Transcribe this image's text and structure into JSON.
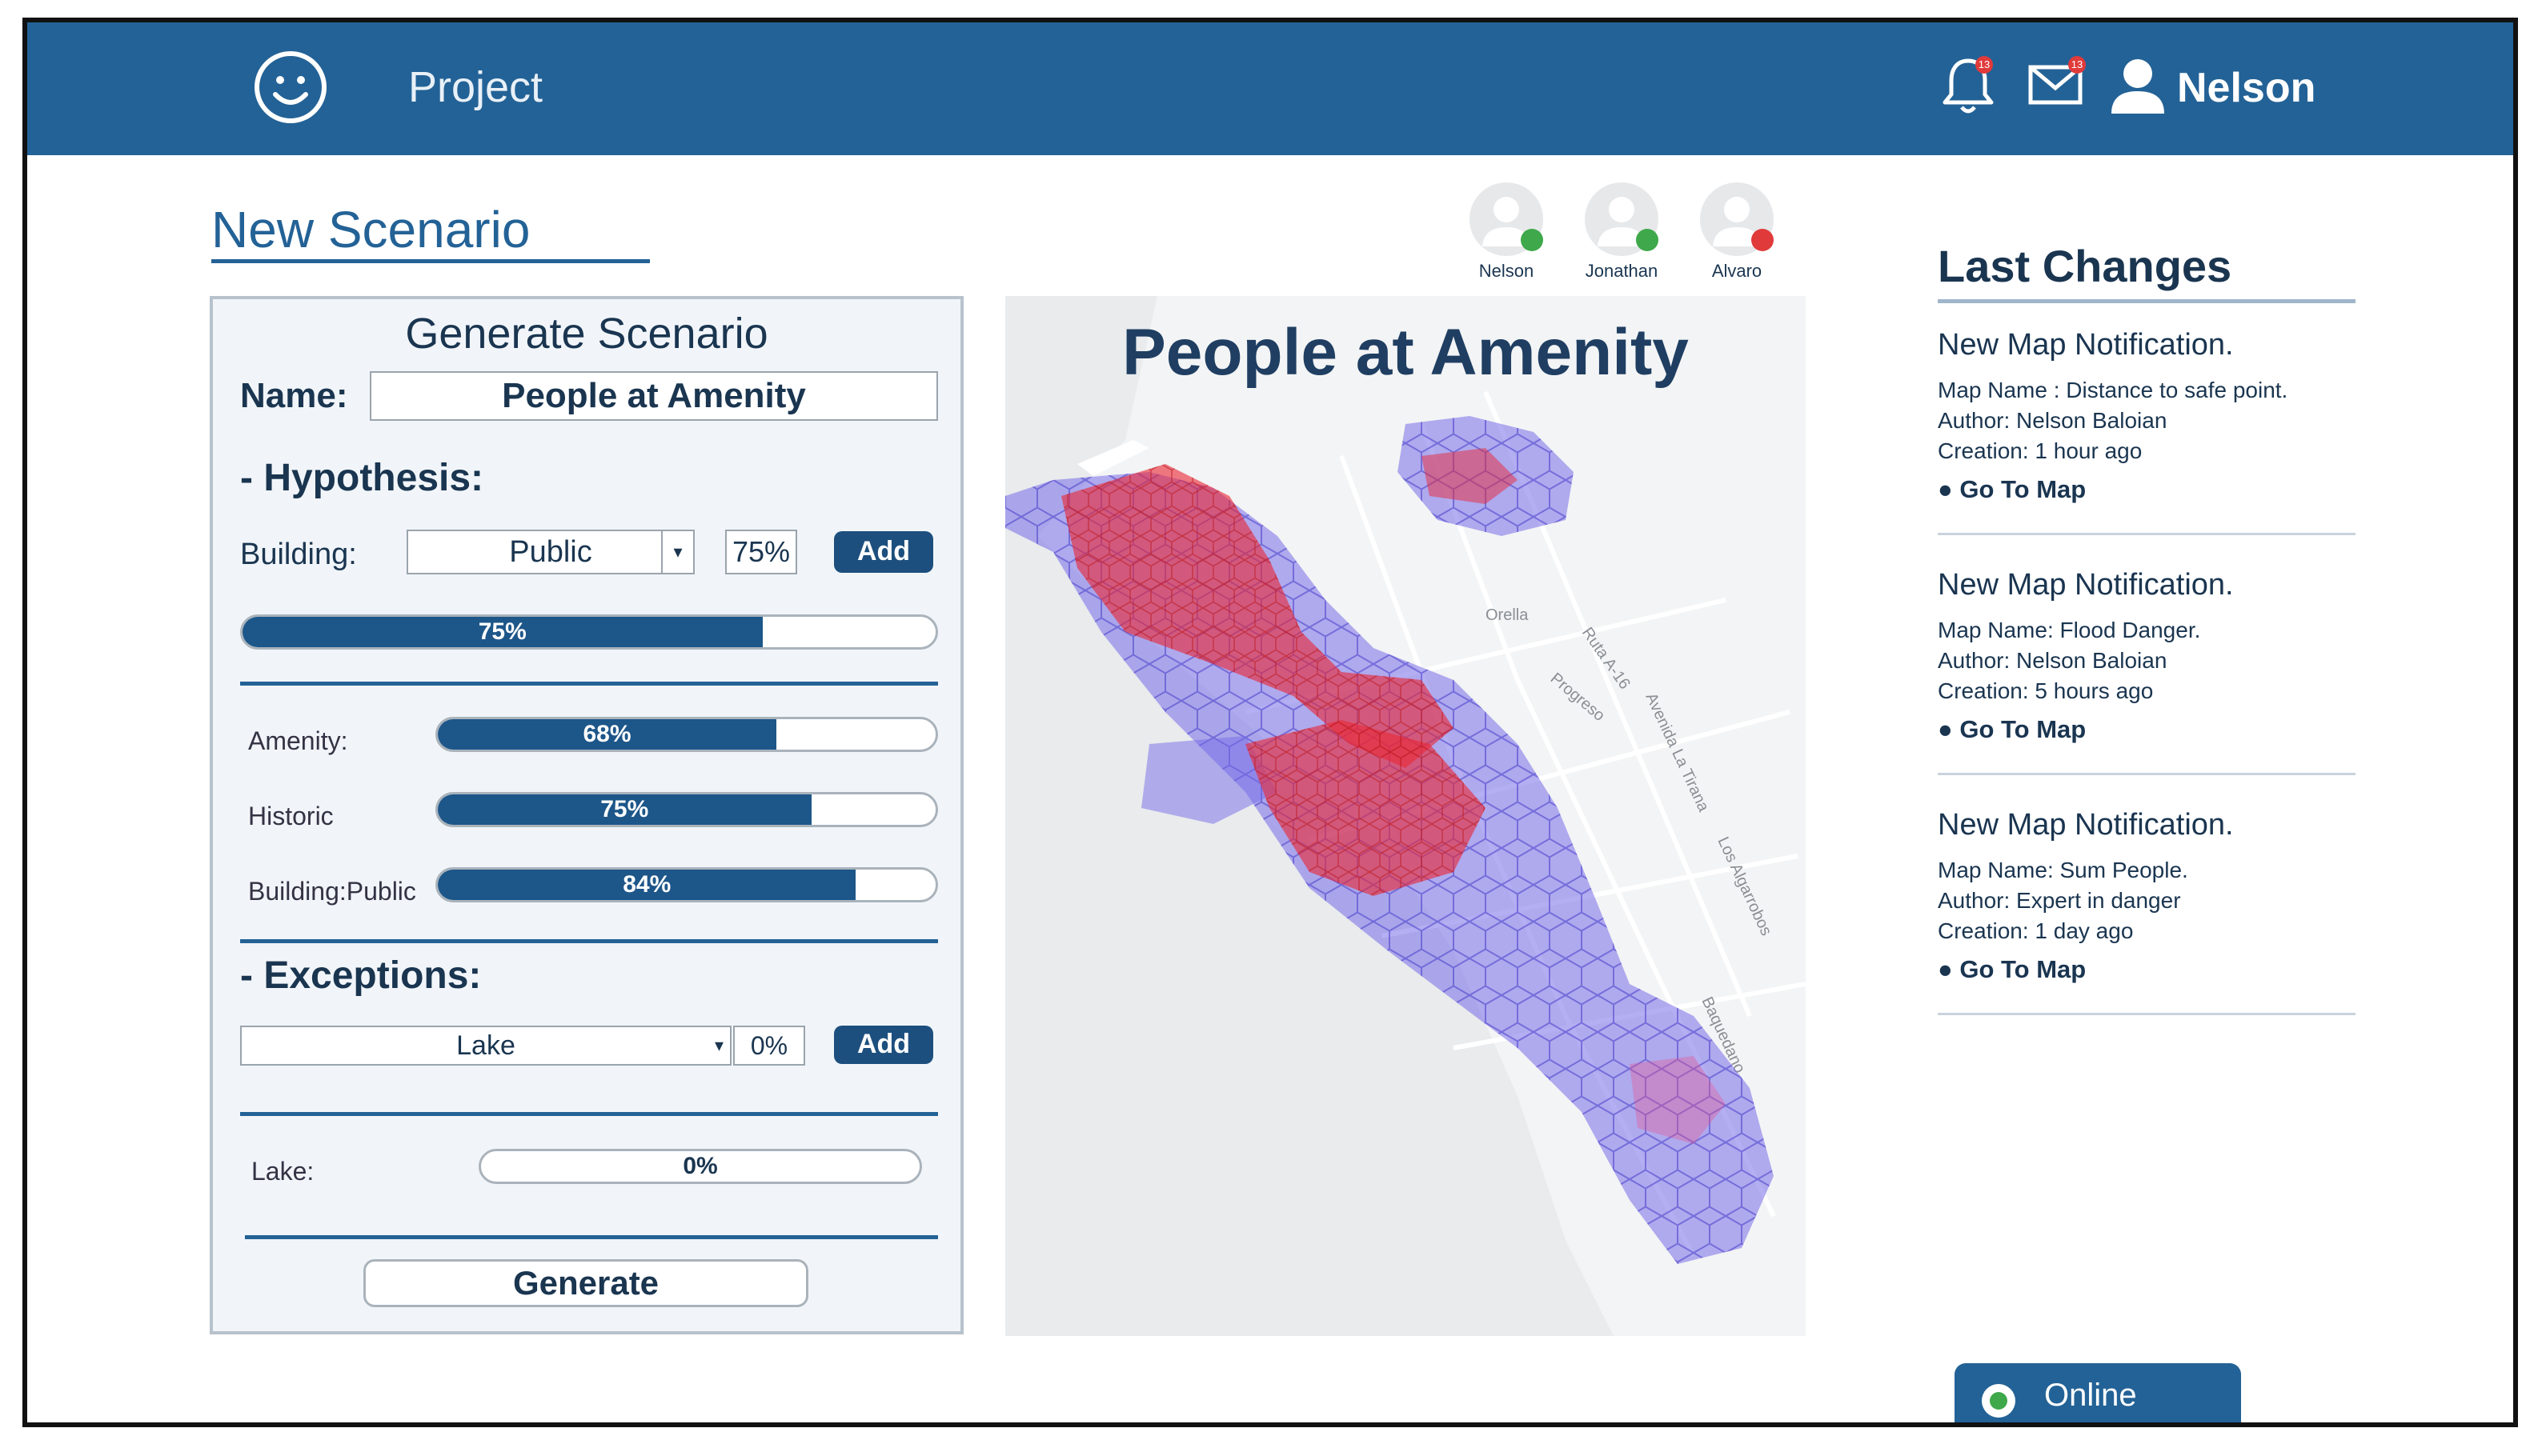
{
  "header": {
    "project_label": "Project",
    "user_name": "Nelson",
    "notifications_badge": "13",
    "mail_badge": "13"
  },
  "page": {
    "title": "New Scenario"
  },
  "form": {
    "panel_title": "Generate Scenario",
    "name_label": "Name:",
    "name_value": "People at Amenity",
    "hypothesis_label": "- Hypothesis:",
    "building_label": "Building:",
    "building_select": "Public",
    "building_percent": "75%",
    "add_label": "Add",
    "main_bar": {
      "label": "75%",
      "value": 0.75
    },
    "hypotheses": [
      {
        "label": "Amenity:",
        "bar_label": "68%",
        "value": 0.68
      },
      {
        "label": "Historic",
        "bar_label": "75%",
        "value": 0.75
      },
      {
        "label": "Building:Public",
        "bar_label": "84%",
        "value": 0.84
      }
    ],
    "exceptions_label": "- Exceptions:",
    "exception_select": "Lake",
    "exception_percent": "0%",
    "exception_add_label": "Add",
    "exceptions": [
      {
        "label": "Lake:",
        "bar_label": "0%",
        "value": 0.0
      }
    ],
    "generate_label": "Generate"
  },
  "map": {
    "title": "People at Amenity",
    "streets": [
      "Orella",
      "Ruta A-16",
      "Progreso",
      "Avenida La Tirana",
      "Los Algarrobos",
      "Baquedano"
    ]
  },
  "collaborators": [
    {
      "name": "Nelson",
      "status_color": "#3ea84a"
    },
    {
      "name": "Jonathan",
      "status_color": "#3ea84a"
    },
    {
      "name": "Alvaro",
      "status_color": "#e03a3a"
    }
  ],
  "last_changes": {
    "title": "Last Changes",
    "goto_label": "Go To Map",
    "items": [
      {
        "title": "New Map Notification.",
        "map_name": "Map Name : Distance to safe point.",
        "author": "Author: Nelson Baloian",
        "creation": "Creation: 1 hour ago"
      },
      {
        "title": "New Map Notification.",
        "map_name": "Map Name: Flood Danger.",
        "author": "Author:  Nelson Baloian",
        "creation": "Creation: 5 hours ago"
      },
      {
        "title": "New Map Notification.",
        "map_name": "Map Name: Sum People.",
        "author": "Author: Expert in danger",
        "creation": "Creation: 1 day ago"
      }
    ]
  },
  "status": {
    "label": "Online",
    "color": "#3ea84a"
  }
}
